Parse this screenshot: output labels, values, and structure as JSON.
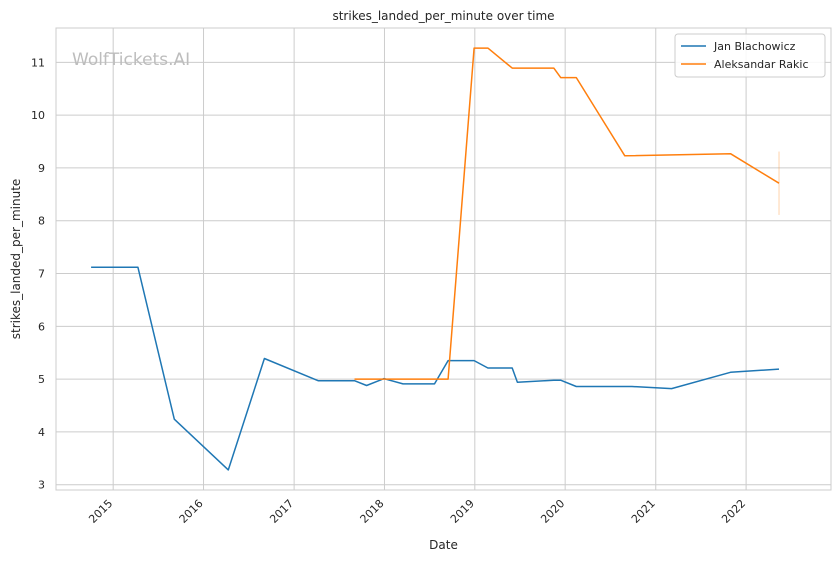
{
  "watermark": "WolfTickets.AI",
  "chart_data": {
    "type": "line",
    "title": "strikes_landed_per_minute over time",
    "xlabel": "Date",
    "ylabel": "strikes_landed_per_minute",
    "xlim": [
      "2014-05-15",
      "2022-12-10"
    ],
    "ylim": [
      2.9,
      11.65
    ],
    "x_ticks": [
      "2015-01-01",
      "2016-01-01",
      "2017-01-01",
      "2018-01-01",
      "2019-01-01",
      "2020-01-01",
      "2021-01-01",
      "2022-01-01"
    ],
    "x_tick_labels": [
      "2015",
      "2016",
      "2017",
      "2018",
      "2019",
      "2020",
      "2021",
      "2022"
    ],
    "y_ticks": [
      3,
      4,
      5,
      6,
      7,
      8,
      9,
      10,
      11
    ],
    "y_tick_labels": [
      "3",
      "4",
      "5",
      "6",
      "7",
      "8",
      "9",
      "10",
      "11"
    ],
    "grid": true,
    "legend_position": "top-right",
    "series": [
      {
        "name": "Jan Blachowicz",
        "color": "#1f77b4",
        "points": [
          [
            "2014-10-04",
            7.12
          ],
          [
            "2015-04-11",
            7.12
          ],
          [
            "2015-09-05",
            4.24
          ],
          [
            "2016-04-10",
            3.28
          ],
          [
            "2016-09-03",
            5.39
          ],
          [
            "2017-04-08",
            4.97
          ],
          [
            "2017-09-02",
            4.97
          ],
          [
            "2017-10-21",
            4.88
          ],
          [
            "2017-12-30",
            5.01
          ],
          [
            "2018-03-17",
            4.91
          ],
          [
            "2018-07-22",
            4.91
          ],
          [
            "2018-09-15",
            5.35
          ],
          [
            "2018-12-29",
            5.35
          ],
          [
            "2019-02-23",
            5.21
          ],
          [
            "2019-06-01",
            5.21
          ],
          [
            "2019-06-22",
            4.94
          ],
          [
            "2019-11-16",
            4.98
          ],
          [
            "2019-12-14",
            4.98
          ],
          [
            "2020-02-15",
            4.86
          ],
          [
            "2020-09-27",
            4.86
          ],
          [
            "2021-03-06",
            4.82
          ],
          [
            "2021-10-30",
            5.13
          ],
          [
            "2022-05-14",
            5.19
          ]
        ]
      },
      {
        "name": "Aleksandar Rakic",
        "color": "#ff7f0e",
        "points": [
          [
            "2017-09-02",
            5.0
          ],
          [
            "2018-09-15",
            5.0
          ],
          [
            "2018-12-29",
            11.27
          ],
          [
            "2019-02-23",
            11.27
          ],
          [
            "2019-06-01",
            10.89
          ],
          [
            "2019-11-16",
            10.89
          ],
          [
            "2019-12-14",
            10.71
          ],
          [
            "2020-02-15",
            10.71
          ],
          [
            "2020-08-29",
            9.23
          ],
          [
            "2021-10-30",
            9.27
          ],
          [
            "2022-05-14",
            8.71
          ]
        ],
        "error_bar": {
          "x": "2022-05-14",
          "low": 8.11,
          "high": 9.31
        }
      }
    ]
  }
}
